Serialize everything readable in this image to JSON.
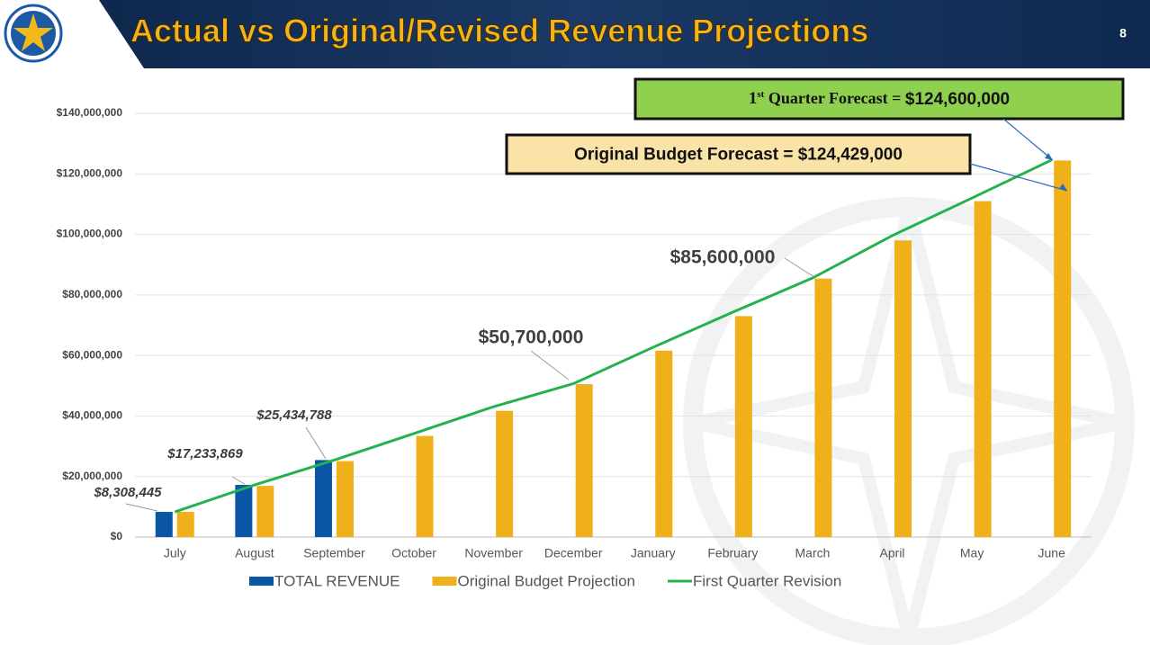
{
  "header": {
    "title": "Actual vs Original/Revised Revenue Projections",
    "page_number": "8"
  },
  "chart_data": {
    "type": "bar-line",
    "categories": [
      "July",
      "August",
      "September",
      "October",
      "November",
      "December",
      "January",
      "February",
      "March",
      "April",
      "May",
      "June"
    ],
    "series": [
      {
        "name": "TOTAL REVENUE",
        "type": "bar",
        "color": "#0a56a5",
        "values": [
          8308445,
          17233869,
          25434788,
          null,
          null,
          null,
          null,
          null,
          null,
          null,
          null,
          null
        ],
        "value_labels": [
          "$8,308,445",
          "$17,233,869",
          "$25,434,788",
          null,
          null,
          null,
          null,
          null,
          null,
          null,
          null,
          null
        ]
      },
      {
        "name": "Original Budget Projection",
        "type": "bar",
        "color": "#efb019",
        "values": [
          8300000,
          16900000,
          25100000,
          33400000,
          41700000,
          50500000,
          61600000,
          73000000,
          85400000,
          98000000,
          111000000,
          124429000
        ]
      },
      {
        "name": "First Quarter Revision",
        "type": "line",
        "color": "#23b24b",
        "values": [
          8308445,
          17233869,
          25434788,
          34200000,
          43100000,
          50700000,
          62700000,
          74300000,
          85600000,
          99600000,
          112000000,
          124600000
        ],
        "value_labels": [
          null,
          null,
          null,
          null,
          null,
          "$50,700,000",
          null,
          null,
          "$85,600,000",
          null,
          null,
          null
        ]
      }
    ],
    "ylim": [
      0,
      140000000
    ],
    "yticks": [
      {
        "value": 0,
        "label": "$0"
      },
      {
        "value": 20000000,
        "label": "$20,000,000"
      },
      {
        "value": 40000000,
        "label": "$40,000,000"
      },
      {
        "value": 60000000,
        "label": "$60,000,000"
      },
      {
        "value": 80000000,
        "label": "$80,000,000"
      },
      {
        "value": 100000000,
        "label": "$100,000,000"
      },
      {
        "value": 120000000,
        "label": "$120,000,000"
      },
      {
        "value": 140000000,
        "label": "$140,000,000"
      }
    ],
    "grid": true,
    "legend": "bottom",
    "annotations": [
      {
        "parts": [
          "1",
          "st",
          " Quarter Forecast = ",
          "$124,600,000"
        ]
      },
      {
        "parts": [
          "Original Budget Forecast = $124,429,000"
        ]
      }
    ]
  }
}
